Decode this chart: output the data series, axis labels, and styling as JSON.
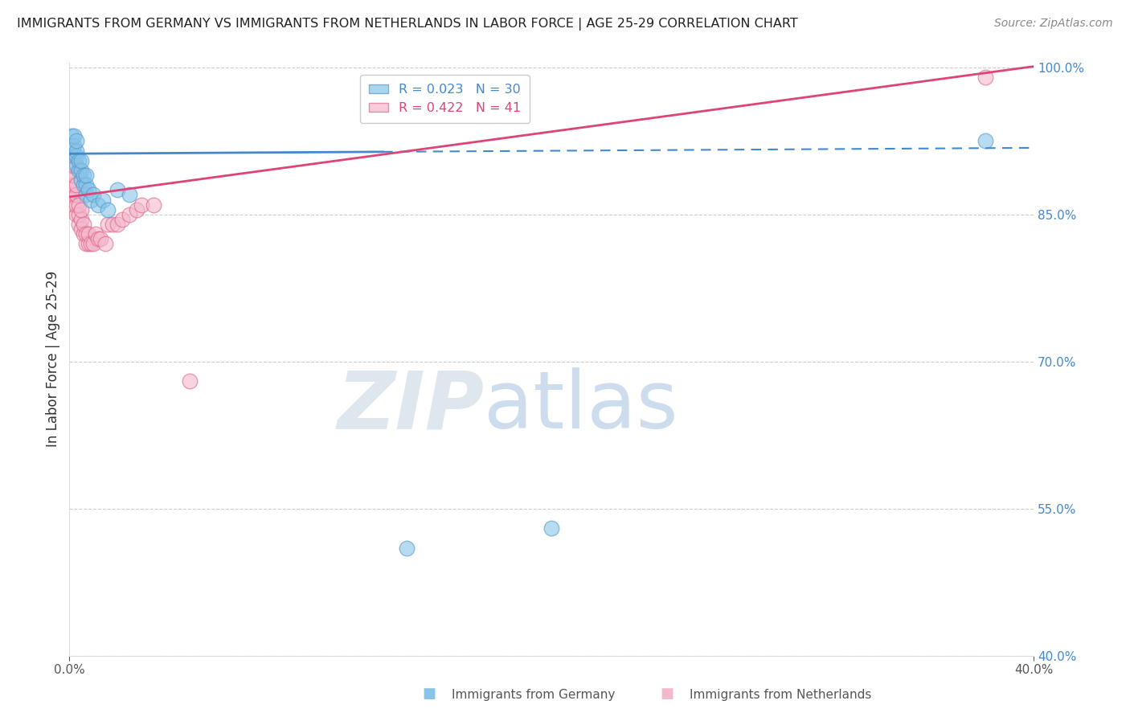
{
  "title": "IMMIGRANTS FROM GERMANY VS IMMIGRANTS FROM NETHERLANDS IN LABOR FORCE | AGE 25-29 CORRELATION CHART",
  "source": "Source: ZipAtlas.com",
  "xlabel_germany": "Immigrants from Germany",
  "xlabel_netherlands": "Immigrants from Netherlands",
  "ylabel": "In Labor Force | Age 25-29",
  "xlim": [
    0.0,
    0.4
  ],
  "ylim": [
    0.4,
    1.005
  ],
  "yticks": [
    0.4,
    0.55,
    0.7,
    0.85,
    1.0
  ],
  "ytick_labels": [
    "40.0%",
    "55.0%",
    "70.0%",
    "85.0%",
    "100.0%"
  ],
  "germany_R": 0.023,
  "germany_N": 30,
  "netherlands_R": 0.422,
  "netherlands_N": 41,
  "germany_color": "#88c4e8",
  "netherlands_color": "#f4b8cc",
  "germany_edge_color": "#5599cc",
  "netherlands_edge_color": "#dd6688",
  "germany_trend_color": "#4488cc",
  "netherlands_trend_color": "#dd4477",
  "watermark_zip": "ZIP",
  "watermark_atlas": "atlas",
  "watermark_color_zip": "#c8d8e8",
  "watermark_color_atlas": "#a8c8e8",
  "germany_x": [
    0.001,
    0.001,
    0.002,
    0.002,
    0.002,
    0.003,
    0.003,
    0.003,
    0.003,
    0.004,
    0.004,
    0.005,
    0.005,
    0.005,
    0.006,
    0.006,
    0.007,
    0.007,
    0.007,
    0.008,
    0.009,
    0.01,
    0.012,
    0.014,
    0.016,
    0.02,
    0.025,
    0.14,
    0.2,
    0.38
  ],
  "germany_y": [
    0.92,
    0.93,
    0.91,
    0.92,
    0.93,
    0.9,
    0.91,
    0.915,
    0.925,
    0.895,
    0.905,
    0.885,
    0.895,
    0.905,
    0.88,
    0.89,
    0.87,
    0.88,
    0.89,
    0.875,
    0.865,
    0.87,
    0.86,
    0.865,
    0.855,
    0.875,
    0.87,
    0.51,
    0.53,
    0.925
  ],
  "netherlands_x": [
    0.001,
    0.001,
    0.001,
    0.001,
    0.002,
    0.002,
    0.002,
    0.002,
    0.002,
    0.003,
    0.003,
    0.003,
    0.003,
    0.004,
    0.004,
    0.004,
    0.005,
    0.005,
    0.005,
    0.006,
    0.006,
    0.007,
    0.007,
    0.008,
    0.008,
    0.009,
    0.01,
    0.011,
    0.012,
    0.013,
    0.015,
    0.016,
    0.018,
    0.02,
    0.022,
    0.025,
    0.028,
    0.03,
    0.035,
    0.05,
    0.38
  ],
  "netherlands_y": [
    0.87,
    0.88,
    0.89,
    0.9,
    0.86,
    0.87,
    0.88,
    0.89,
    0.9,
    0.85,
    0.86,
    0.87,
    0.88,
    0.84,
    0.85,
    0.86,
    0.835,
    0.845,
    0.855,
    0.83,
    0.84,
    0.82,
    0.83,
    0.82,
    0.83,
    0.82,
    0.82,
    0.83,
    0.825,
    0.825,
    0.82,
    0.84,
    0.84,
    0.84,
    0.845,
    0.85,
    0.855,
    0.86,
    0.86,
    0.68,
    0.99
  ]
}
